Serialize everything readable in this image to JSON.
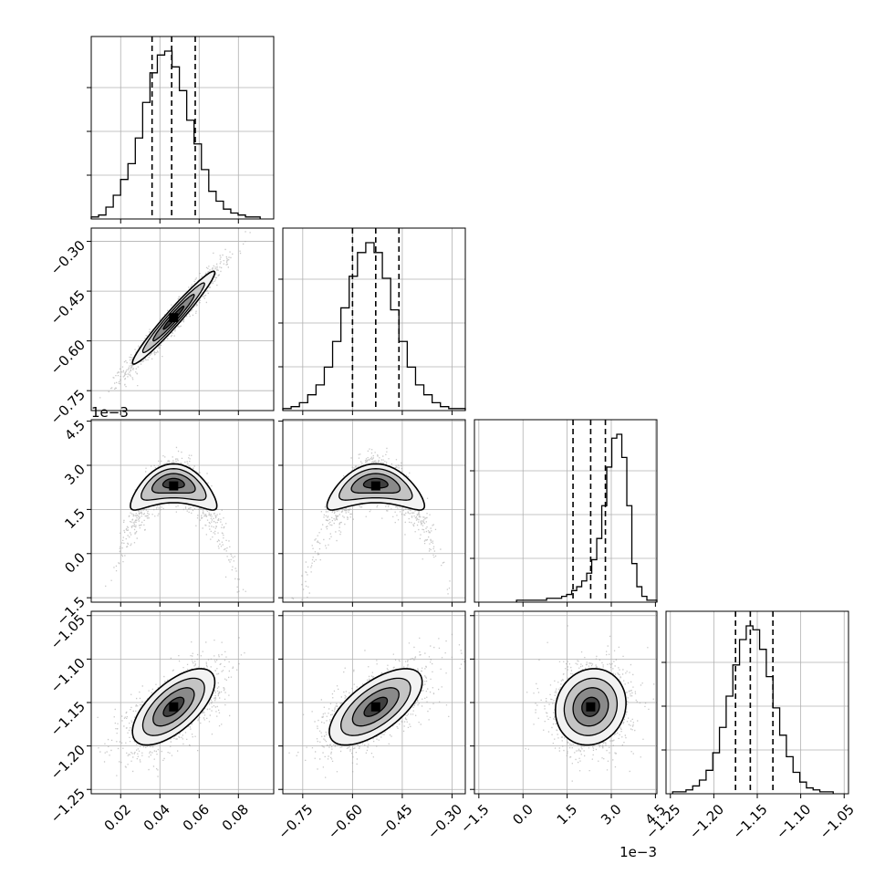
{
  "chart_data": {
    "type": "corner",
    "parameters": [
      {
        "range": [
          0.005,
          0.098
        ],
        "ticks": [
          0.02,
          0.04,
          0.06,
          0.08
        ],
        "tick_labels": [
          "0.02",
          "0.04",
          "0.06",
          "0.08"
        ],
        "offset_label": "",
        "quantiles": [
          0.036,
          0.046,
          0.058
        ],
        "mean": 0.047,
        "sd": 0.0105,
        "histogram": [
          1,
          2,
          6,
          12,
          20,
          28,
          41,
          59,
          74,
          83,
          85,
          77,
          65,
          50,
          38,
          25,
          14,
          9,
          5,
          3,
          2,
          1,
          1
        ]
      },
      {
        "range": [
          -0.81,
          -0.26
        ],
        "ticks": [
          -0.75,
          -0.6,
          -0.45,
          -0.3
        ],
        "tick_labels": [
          "−0.75",
          "−0.60",
          "−0.45",
          "−0.30"
        ],
        "offset_label": "",
        "quantiles": [
          -0.6,
          -0.53,
          -0.46
        ],
        "mean": -0.53,
        "sd": 0.07,
        "histogram": [
          1,
          2,
          4,
          8,
          13,
          22,
          35,
          52,
          68,
          80,
          85,
          80,
          67,
          51,
          35,
          22,
          13,
          8,
          4,
          2,
          1,
          1
        ]
      },
      {
        "range": [
          -1.65,
          4.55
        ],
        "ticks": [
          -1.5,
          0.0,
          1.5,
          3.0,
          4.5
        ],
        "tick_labels": [
          "−1.5",
          "0.0",
          "1.5",
          "3.0",
          "4.5"
        ],
        "offset_label": "1e−3",
        "quantiles": [
          1.7,
          2.3,
          2.8
        ],
        "mean": 2.3,
        "sd": 0.6,
        "histogram": [
          1,
          1,
          1,
          1,
          1,
          1,
          2,
          2,
          2,
          3,
          4,
          6,
          8,
          11,
          15,
          22,
          33,
          50,
          70,
          85,
          87,
          75,
          50,
          20,
          8,
          3,
          1,
          1
        ]
      },
      {
        "range": [
          -1.255,
          -1.045
        ],
        "ticks": [
          -1.25,
          -1.2,
          -1.15,
          -1.1,
          -1.05
        ],
        "tick_labels": [
          "−1.25",
          "−1.20",
          "−1.15",
          "−1.10",
          "−1.05"
        ],
        "offset_label": "",
        "quantiles": [
          -1.175,
          -1.158,
          -1.132
        ],
        "mean": -1.155,
        "sd": 0.022,
        "histogram": [
          1,
          1,
          2,
          4,
          7,
          12,
          21,
          34,
          50,
          66,
          79,
          86,
          84,
          74,
          60,
          44,
          30,
          19,
          11,
          6,
          3,
          2,
          1,
          1
        ]
      }
    ],
    "pairs": [
      {
        "row": 1,
        "col": 0,
        "corr": 0.97,
        "curved": false
      },
      {
        "row": 2,
        "col": 0,
        "corr": 0.0,
        "curved": true
      },
      {
        "row": 2,
        "col": 1,
        "corr": 0.0,
        "curved": true
      },
      {
        "row": 3,
        "col": 0,
        "corr": 0.65,
        "curved": false
      },
      {
        "row": 3,
        "col": 1,
        "corr": 0.65,
        "curved": false
      },
      {
        "row": 3,
        "col": 2,
        "corr": 0.1,
        "curved": false
      }
    ],
    "grid": true,
    "colors": {
      "line": "#000000",
      "grid": "#b0b0b0",
      "samples": "#9a9a9a",
      "density": "#000000"
    }
  }
}
